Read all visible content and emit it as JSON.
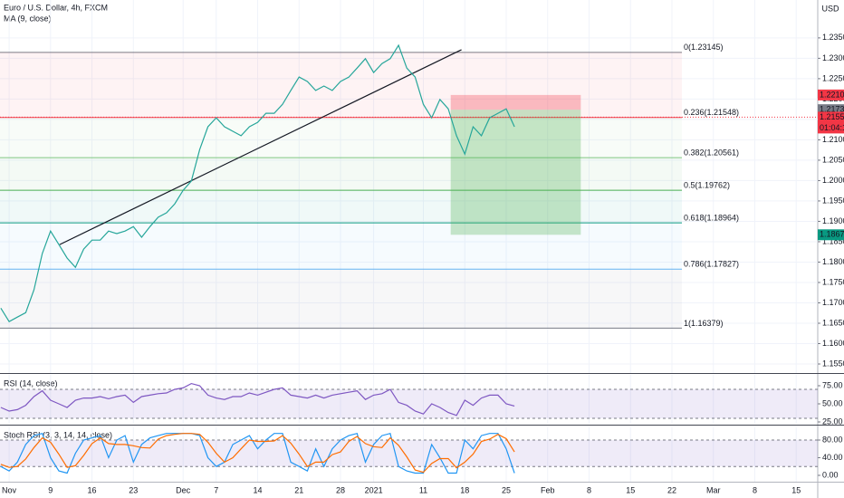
{
  "chart_data": [
    {
      "type": "line",
      "title": "Euro / U.S. Dollar, 4h, FXCM",
      "subtitle": "MA (9, close)",
      "unit": "USD",
      "xlim": [
        -1.1,
        97.6
      ],
      "ylim": [
        1.15278,
        1.2443
      ],
      "grid": true,
      "yticks": [
        {
          "value": 1.155,
          "label": "1.15500"
        },
        {
          "value": 1.16,
          "label": "1.16000"
        },
        {
          "value": 1.165,
          "label": "1.16500"
        },
        {
          "value": 1.17,
          "label": "1.17000"
        },
        {
          "value": 1.175,
          "label": "1.17500"
        },
        {
          "value": 1.18,
          "label": "1.18000"
        },
        {
          "value": 1.185,
          "label": "1.18500"
        },
        {
          "value": 1.19,
          "label": "1.19000"
        },
        {
          "value": 1.195,
          "label": "1.19500"
        },
        {
          "value": 1.2,
          "label": "1.20000"
        },
        {
          "value": 1.205,
          "label": "1.20500"
        },
        {
          "value": 1.21,
          "label": "1.21000"
        },
        {
          "value": 1.215,
          "label": "1.21500"
        },
        {
          "value": 1.22,
          "label": "1.22000"
        },
        {
          "value": 1.225,
          "label": "1.22500"
        },
        {
          "value": 1.23,
          "label": "1.23000"
        },
        {
          "value": 1.235,
          "label": "1.23500"
        }
      ],
      "x": [
        -1,
        0,
        1,
        2,
        3,
        4,
        5,
        6,
        7,
        8,
        9,
        10,
        11,
        12,
        13,
        14,
        15,
        16,
        17,
        18,
        19,
        20,
        21,
        22,
        23,
        24,
        25,
        26,
        27,
        28,
        29,
        30,
        31,
        32,
        33,
        34,
        35,
        36,
        37,
        38,
        39,
        40,
        41,
        42,
        43,
        44,
        45,
        46,
        47,
        48,
        49,
        50,
        51,
        52,
        53,
        54,
        55,
        56,
        57,
        58,
        59,
        60,
        61
      ],
      "series": [
        {
          "color": "#26a69a",
          "values": [
            1.1687,
            1.1654,
            1.1665,
            1.1676,
            1.1732,
            1.1821,
            1.1876,
            1.1843,
            1.181,
            1.1787,
            1.1832,
            1.1854,
            1.1854,
            1.1876,
            1.187,
            1.1876,
            1.1887,
            1.1861,
            1.1887,
            1.191,
            1.1921,
            1.1943,
            1.1976,
            1.1999,
            1.2076,
            1.2132,
            1.2154,
            1.2132,
            1.2121,
            1.211,
            1.2132,
            1.2143,
            1.2165,
            1.2165,
            1.2187,
            1.2221,
            1.2254,
            1.2243,
            1.2221,
            1.2232,
            1.2221,
            1.2243,
            1.2254,
            1.2276,
            1.2299,
            1.2265,
            1.2287,
            1.2299,
            1.2332,
            1.2276,
            1.2254,
            1.2187,
            1.2154,
            1.2199,
            1.2176,
            1.211,
            1.2065,
            1.2132,
            1.211,
            1.2154,
            1.2165,
            1.2176,
            1.2132
          ]
        }
      ],
      "fib_levels": [
        {
          "value": 1.23145,
          "label": "0(1.23145)",
          "color": "#787b86"
        },
        {
          "value": 1.21548,
          "label": "0.236(1.21548)",
          "color": "#f23645"
        },
        {
          "value": 1.20561,
          "label": "0.382(1.20561)",
          "color": "#81c784"
        },
        {
          "value": 1.19762,
          "label": "0.5(1.19762)",
          "color": "#4caf50"
        },
        {
          "value": 1.18964,
          "label": "0.618(1.18964)",
          "color": "#089981"
        },
        {
          "value": 1.17827,
          "label": "0.786(1.17827)",
          "color": "#64b5f6"
        },
        {
          "value": 1.16379,
          "label": "1(1.16379)",
          "color": "#787b86"
        }
      ],
      "trendline": {
        "x": [
          6.1,
          54.6
        ],
        "y": [
          1.1843,
          1.2321
        ]
      },
      "position": {
        "x": [
          53.3,
          69
        ],
        "stop": {
          "value": 1.221,
          "label": "1.22100"
        },
        "entry": {
          "value": 1.21739,
          "label": "1.21739"
        },
        "target": {
          "value": 1.1867,
          "label": "1.18670"
        }
      },
      "last_price": {
        "value": 1.21556,
        "label": "1.21556"
      },
      "countdown": "01:04:18"
    },
    {
      "type": "line",
      "title": "RSI (14, close)",
      "xlim": [
        -1.1,
        97.6
      ],
      "ylim": [
        22.5,
        90
      ],
      "band": [
        30,
        70
      ],
      "yticks": [
        {
          "value": 25,
          "label": "25.00"
        },
        {
          "value": 50,
          "label": "50.00"
        },
        {
          "value": 75,
          "label": "75.00"
        }
      ],
      "x": [
        -1,
        0,
        1,
        2,
        3,
        4,
        5,
        6,
        7,
        8,
        9,
        10,
        11,
        12,
        13,
        14,
        15,
        16,
        17,
        18,
        19,
        20,
        21,
        22,
        23,
        24,
        25,
        26,
        27,
        28,
        29,
        30,
        31,
        32,
        33,
        34,
        35,
        36,
        37,
        38,
        39,
        40,
        41,
        42,
        43,
        44,
        45,
        46,
        47,
        48,
        49,
        50,
        51,
        52,
        53,
        54,
        55,
        56,
        57,
        58,
        59,
        60,
        61
      ],
      "series": [
        {
          "color": "#7e57c2",
          "values": [
            45,
            40,
            42,
            48,
            60,
            68,
            55,
            50,
            45,
            55,
            58,
            58,
            60,
            57,
            60,
            62,
            52,
            60,
            62,
            64,
            65,
            70,
            72,
            78,
            75,
            62,
            58,
            56,
            60,
            60,
            65,
            62,
            66,
            70,
            72,
            62,
            60,
            58,
            62,
            58,
            62,
            64,
            66,
            68,
            56,
            62,
            64,
            70,
            52,
            48,
            40,
            36,
            50,
            45,
            38,
            34,
            55,
            48,
            58,
            62,
            62,
            50,
            47
          ]
        }
      ]
    },
    {
      "type": "line",
      "title": "Stoch RSI (3, 3, 14, 14, close)",
      "xlim": [
        -1.1,
        97.6
      ],
      "ylim": [
        -14.4,
        108.7
      ],
      "band": [
        20,
        80
      ],
      "yticks": [
        {
          "value": 0,
          "label": "0.00"
        },
        {
          "value": 40,
          "label": "40.00"
        },
        {
          "value": 80,
          "label": "80.00"
        }
      ],
      "xticks": [
        {
          "value": 0,
          "label": "Nov"
        },
        {
          "value": 5,
          "label": "9"
        },
        {
          "value": 10,
          "label": "16"
        },
        {
          "value": 15,
          "label": "23"
        },
        {
          "value": 21,
          "label": "Dec"
        },
        {
          "value": 25,
          "label": "7"
        },
        {
          "value": 30,
          "label": "14"
        },
        {
          "value": 35,
          "label": "21"
        },
        {
          "value": 40,
          "label": "28"
        },
        {
          "value": 44,
          "label": "2021"
        },
        {
          "value": 50,
          "label": "11"
        },
        {
          "value": 55,
          "label": "18"
        },
        {
          "value": 60,
          "label": "25"
        },
        {
          "value": 65,
          "label": "Feb"
        },
        {
          "value": 70,
          "label": "8"
        },
        {
          "value": 75,
          "label": "15"
        },
        {
          "value": 80,
          "label": "22"
        },
        {
          "value": 85,
          "label": "Mar"
        },
        {
          "value": 90,
          "label": "8"
        },
        {
          "value": 95,
          "label": "15"
        }
      ],
      "x": [
        -1,
        0,
        1,
        2,
        3,
        4,
        5,
        6,
        7,
        8,
        9,
        10,
        11,
        12,
        13,
        14,
        15,
        16,
        17,
        18,
        19,
        20,
        21,
        22,
        23,
        24,
        25,
        26,
        27,
        28,
        29,
        30,
        31,
        32,
        33,
        34,
        35,
        36,
        37,
        38,
        39,
        40,
        41,
        42,
        43,
        44,
        45,
        46,
        47,
        48,
        49,
        50,
        51,
        52,
        53,
        54,
        55,
        56,
        57,
        58,
        59,
        60,
        61
      ],
      "series": [
        {
          "color": "#2196f3",
          "values": [
            20,
            10,
            30,
            70,
            90,
            95,
            40,
            10,
            5,
            50,
            80,
            85,
            90,
            40,
            80,
            90,
            30,
            70,
            85,
            90,
            95,
            95,
            95,
            95,
            90,
            40,
            20,
            30,
            70,
            80,
            90,
            60,
            80,
            95,
            95,
            30,
            20,
            10,
            60,
            20,
            60,
            80,
            90,
            95,
            30,
            70,
            90,
            95,
            20,
            10,
            5,
            5,
            70,
            40,
            5,
            5,
            80,
            60,
            90,
            95,
            95,
            60,
            5
          ]
        },
        {
          "color": "#ff6d00",
          "values": [
            25,
            18,
            20,
            37,
            63,
            85,
            75,
            48,
            18,
            22,
            45,
            72,
            85,
            72,
            70,
            70,
            67,
            63,
            62,
            82,
            90,
            93,
            95,
            95,
            93,
            75,
            50,
            30,
            40,
            60,
            80,
            77,
            77,
            78,
            90,
            73,
            48,
            20,
            30,
            30,
            47,
            53,
            77,
            88,
            72,
            65,
            63,
            85,
            68,
            42,
            12,
            7,
            27,
            38,
            38,
            17,
            30,
            48,
            77,
            82,
            93,
            83,
            53
          ]
        }
      ]
    }
  ]
}
